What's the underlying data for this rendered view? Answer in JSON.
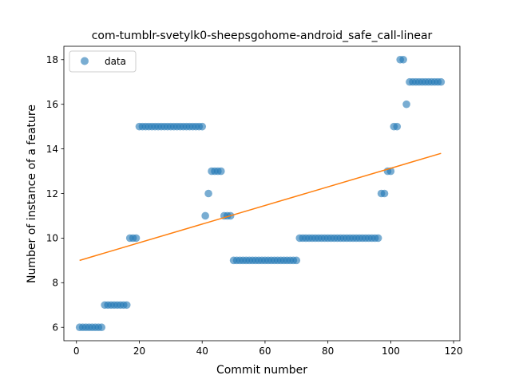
{
  "chart_data": {
    "type": "scatter",
    "title": "com-tumblr-svetylk0-sheepsgohome-android_safe_call-linear",
    "xlabel": "Commit number",
    "ylabel": "Number of instance of a feature",
    "xlim": [
      -4,
      122
    ],
    "ylim": [
      5.4,
      18.6
    ],
    "x_ticks": [
      0,
      20,
      40,
      60,
      80,
      100,
      120
    ],
    "y_ticks": [
      6,
      8,
      10,
      12,
      14,
      16,
      18
    ],
    "grid": false,
    "legend": {
      "position": "top-left",
      "entries": [
        "data"
      ]
    },
    "series": [
      {
        "name": "data",
        "kind": "points",
        "color": "#1f77b4",
        "x": [
          1,
          2,
          3,
          4,
          5,
          6,
          7,
          8,
          9,
          10,
          11,
          12,
          13,
          14,
          15,
          16,
          17,
          18,
          19,
          20,
          21,
          22,
          23,
          24,
          25,
          26,
          27,
          28,
          29,
          30,
          31,
          32,
          33,
          34,
          35,
          36,
          37,
          38,
          39,
          40,
          41,
          42,
          43,
          44,
          45,
          46,
          47,
          48,
          49,
          50,
          51,
          52,
          53,
          54,
          55,
          56,
          57,
          58,
          59,
          60,
          61,
          62,
          63,
          64,
          65,
          66,
          67,
          68,
          69,
          70,
          71,
          72,
          73,
          74,
          75,
          76,
          77,
          78,
          79,
          80,
          81,
          82,
          83,
          84,
          85,
          86,
          87,
          88,
          89,
          90,
          91,
          92,
          93,
          94,
          95,
          96,
          97,
          98,
          99,
          100,
          101,
          102,
          103,
          104,
          105,
          106,
          107,
          108,
          109,
          110,
          111,
          112,
          113,
          114,
          115,
          116
        ],
        "y": [
          6,
          6,
          6,
          6,
          6,
          6,
          6,
          6,
          7,
          7,
          7,
          7,
          7,
          7,
          7,
          7,
          10,
          10,
          10,
          15,
          15,
          15,
          15,
          15,
          15,
          15,
          15,
          15,
          15,
          15,
          15,
          15,
          15,
          15,
          15,
          15,
          15,
          15,
          15,
          15,
          11,
          12,
          13,
          13,
          13,
          13,
          11,
          11,
          11,
          9,
          9,
          9,
          9,
          9,
          9,
          9,
          9,
          9,
          9,
          9,
          9,
          9,
          9,
          9,
          9,
          9,
          9,
          9,
          9,
          9,
          10,
          10,
          10,
          10,
          10,
          10,
          10,
          10,
          10,
          10,
          10,
          10,
          10,
          10,
          10,
          10,
          10,
          10,
          10,
          10,
          10,
          10,
          10,
          10,
          10,
          10,
          12,
          12,
          13,
          13,
          15,
          15,
          18,
          18,
          16,
          17,
          17,
          17,
          17,
          17,
          17,
          17,
          17,
          17,
          17,
          17
        ]
      },
      {
        "name": "",
        "kind": "line",
        "color": "#ff7f0e",
        "x": [
          1,
          116
        ],
        "y": [
          9.0,
          13.8
        ]
      }
    ]
  }
}
